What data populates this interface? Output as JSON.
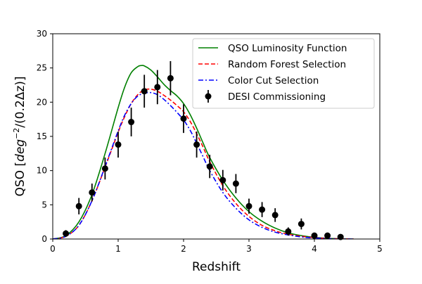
{
  "chart_data": {
    "type": "line",
    "title": "",
    "xlabel": "Redshift",
    "ylabel": {
      "prefix": "QSO [",
      "unit_base": "deg",
      "unit_exp": "−2",
      "unit_rest": "/(0.2Δz)",
      "suffix": "]"
    },
    "xlim": [
      0,
      5
    ],
    "ylim": [
      0,
      30
    ],
    "xticks": [
      0,
      1,
      2,
      3,
      4,
      5
    ],
    "yticks": [
      0,
      5,
      10,
      15,
      20,
      25,
      30
    ],
    "grid": false,
    "legend_position": "top-right",
    "series": [
      {
        "name": "QSO Luminosity Function",
        "style": "solid",
        "color": "#008000",
        "x": [
          0.0,
          0.2,
          0.4,
          0.6,
          0.8,
          1.0,
          1.1,
          1.2,
          1.3,
          1.35,
          1.4,
          1.5,
          1.6,
          1.7,
          1.8,
          1.9,
          2.0,
          2.1,
          2.2,
          2.3,
          2.4,
          2.6,
          2.8,
          3.0,
          3.2,
          3.4,
          3.6,
          3.8,
          4.0,
          4.2,
          4.4,
          4.6
        ],
        "y": [
          0.0,
          0.5,
          2.5,
          6.5,
          12.5,
          19.2,
          22.2,
          24.3,
          25.2,
          25.35,
          25.3,
          24.7,
          23.7,
          22.6,
          21.7,
          20.9,
          19.8,
          18.2,
          16.2,
          14.0,
          11.9,
          8.6,
          6.0,
          4.0,
          2.6,
          1.6,
          0.9,
          0.5,
          0.25,
          0.1,
          0.04,
          0.0
        ]
      },
      {
        "name": "Random Forest Selection",
        "style": "dashed",
        "color": "#ff0000",
        "x": [
          0.0,
          0.2,
          0.4,
          0.6,
          0.8,
          1.0,
          1.1,
          1.2,
          1.3,
          1.4,
          1.5,
          1.6,
          1.7,
          1.8,
          1.9,
          2.0,
          2.1,
          2.2,
          2.3,
          2.4,
          2.6,
          2.8,
          3.0,
          3.2,
          3.4,
          3.6,
          3.8,
          4.0,
          4.2,
          4.4,
          4.6
        ],
        "y": [
          0.0,
          0.4,
          2.0,
          5.6,
          10.5,
          15.6,
          17.9,
          19.8,
          21.1,
          21.8,
          21.9,
          21.6,
          21.0,
          20.3,
          19.5,
          18.6,
          17.2,
          15.4,
          13.4,
          11.3,
          7.8,
          5.2,
          3.3,
          2.0,
          1.2,
          0.7,
          0.4,
          0.2,
          0.08,
          0.03,
          0.0
        ]
      },
      {
        "name": "Color Cut Selection",
        "style": "dashdot",
        "color": "#0000ff",
        "x": [
          0.0,
          0.2,
          0.4,
          0.6,
          0.8,
          1.0,
          1.1,
          1.2,
          1.3,
          1.4,
          1.5,
          1.6,
          1.7,
          1.8,
          1.9,
          2.0,
          2.1,
          2.2,
          2.3,
          2.4,
          2.6,
          2.8,
          3.0,
          3.2,
          3.4,
          3.6,
          3.8,
          4.0,
          4.2,
          4.4,
          4.6
        ],
        "y": [
          0.0,
          0.4,
          2.0,
          5.6,
          10.6,
          15.8,
          18.1,
          19.8,
          20.9,
          21.3,
          21.4,
          21.1,
          20.4,
          19.5,
          18.5,
          17.4,
          15.9,
          14.0,
          12.0,
          10.0,
          6.8,
          4.5,
          2.8,
          1.7,
          1.0,
          0.6,
          0.3,
          0.15,
          0.06,
          0.02,
          0.0
        ]
      }
    ],
    "points": {
      "name": "DESI Commissioning",
      "color": "#000000",
      "x": [
        0.2,
        0.4,
        0.6,
        0.8,
        1.0,
        1.2,
        1.4,
        1.6,
        1.8,
        2.0,
        2.2,
        2.4,
        2.6,
        2.8,
        3.0,
        3.2,
        3.4,
        3.6,
        3.8,
        4.0,
        4.2,
        4.4
      ],
      "y": [
        0.8,
        4.8,
        6.8,
        10.3,
        13.8,
        17.1,
        21.6,
        22.2,
        23.5,
        17.6,
        13.8,
        10.6,
        8.6,
        8.1,
        4.8,
        4.3,
        3.5,
        1.1,
        2.2,
        0.5,
        0.5,
        0.3
      ],
      "yerr": [
        0.5,
        1.2,
        1.3,
        1.6,
        1.9,
        2.1,
        2.4,
        2.5,
        2.5,
        2.1,
        1.9,
        1.7,
        1.5,
        1.4,
        1.1,
        1.1,
        1.0,
        0.6,
        0.8,
        0.4,
        0.4,
        0.3
      ]
    }
  }
}
